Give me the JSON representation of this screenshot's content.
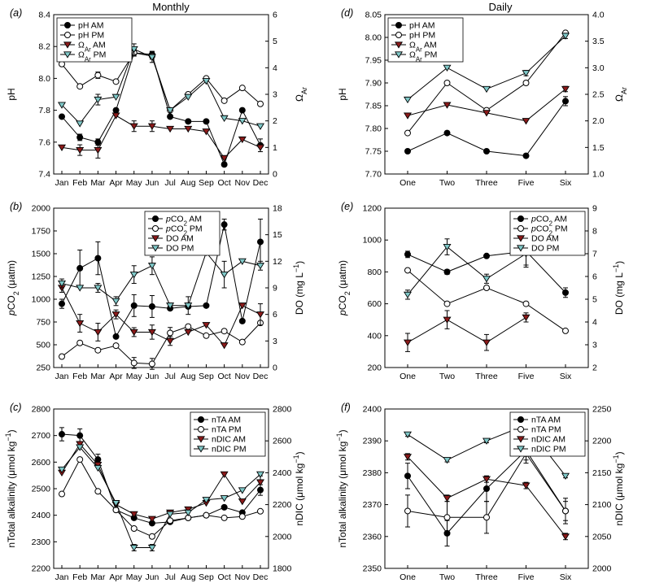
{
  "figure_titles": {
    "left": "Monthly",
    "right": "Daily"
  },
  "chart_data": [
    {
      "id": "a",
      "panel_label": "(a)",
      "type": "line",
      "categories": [
        "Jan",
        "Feb",
        "Mar",
        "Apr",
        "May",
        "Jun",
        "Jul",
        "Aug",
        "Sep",
        "Oct",
        "Nov",
        "Dec"
      ],
      "ylabel": "pH",
      "ylim": [
        7.4,
        8.4
      ],
      "yticks": [
        "7.4",
        "7.6",
        "7.8",
        "8.0",
        "8.2",
        "8.4"
      ],
      "y2label": "Ω Ar",
      "y2lim": [
        0,
        6
      ],
      "y2ticks": [
        "0",
        "1",
        "2",
        "3",
        "4",
        "5",
        "6"
      ],
      "legend": "top-left",
      "series": [
        {
          "name": "pH AM",
          "marker": "filled-circle",
          "axis": "left",
          "values": [
            7.76,
            7.63,
            7.6,
            7.8,
            8.16,
            8.15,
            7.76,
            7.73,
            7.73,
            7.46,
            7.8,
            7.58
          ],
          "err": [
            0,
            0.02,
            0.02,
            0,
            0.02,
            0.02,
            0,
            0,
            0,
            0,
            0,
            0.04
          ]
        },
        {
          "name": "pH PM",
          "marker": "open-circle",
          "axis": "left",
          "values": [
            8.09,
            7.95,
            8.02,
            7.98,
            8.16,
            8.14,
            7.8,
            7.9,
            8.0,
            7.86,
            7.94,
            7.84
          ],
          "err": [
            0,
            0,
            0.02,
            0,
            0.02,
            0.02,
            0,
            0,
            0,
            0,
            0,
            0
          ]
        },
        {
          "name": "Ω Ar AM",
          "marker": "filled-triangle-down",
          "axis": "right",
          "values": [
            1.0,
            0.9,
            0.9,
            2.2,
            1.8,
            1.8,
            1.7,
            1.7,
            1.6,
            0.6,
            1.3,
            1.0
          ],
          "err": [
            0,
            0.2,
            0.3,
            0,
            0.2,
            0.2,
            0,
            0,
            0,
            0,
            0,
            0
          ]
        },
        {
          "name": "Ω Ar PM",
          "marker": "open-triangle-down",
          "axis": "right",
          "values": [
            2.6,
            1.9,
            2.8,
            2.9,
            4.7,
            4.4,
            2.4,
            2.9,
            3.5,
            2.1,
            2.0,
            1.8
          ],
          "err": [
            0,
            0,
            0.2,
            0,
            0.2,
            0.2,
            0,
            0,
            0,
            0,
            0,
            0
          ]
        }
      ]
    },
    {
      "id": "b",
      "panel_label": "(b)",
      "type": "line",
      "categories": [
        "Jan",
        "Feb",
        "Mar",
        "Apr",
        "May",
        "Jun",
        "Jul",
        "Aug",
        "Sep",
        "Oct",
        "Nov",
        "Dec"
      ],
      "ylabel": "pCO2 (μatm)",
      "ylim": [
        250,
        2000
      ],
      "yticks": [
        "250",
        "500",
        "750",
        "1000",
        "1250",
        "1500",
        "1750",
        "2000"
      ],
      "y2label": "DO (mg L−1)",
      "y2lim": [
        0,
        18
      ],
      "y2ticks": [
        "0",
        "3",
        "6",
        "9",
        "12",
        "15",
        "18"
      ],
      "legend": "top-center",
      "series": [
        {
          "name": "pCO2 AM",
          "marker": "filled-circle",
          "axis": "left",
          "values": [
            950,
            1340,
            1450,
            590,
            930,
            920,
            900,
            920,
            930,
            1820,
            760,
            1630
          ],
          "err": [
            50,
            200,
            180,
            0,
            120,
            120,
            0,
            0,
            0,
            60,
            0,
            250
          ]
        },
        {
          "name": "pCO2 PM",
          "marker": "open-circle",
          "axis": "left",
          "values": [
            370,
            520,
            440,
            490,
            300,
            290,
            630,
            700,
            600,
            650,
            530,
            740
          ],
          "err": [
            0,
            0,
            0,
            0,
            60,
            60,
            60,
            0,
            0,
            0,
            0,
            0
          ]
        },
        {
          "name": "DO AM",
          "marker": "filled-triangle-down",
          "axis": "right",
          "values": [
            9.0,
            5.0,
            4.0,
            6.0,
            4.0,
            4.0,
            3.0,
            4.0,
            4.8,
            2.5,
            7.0,
            6.0
          ],
          "err": [
            0.5,
            1.0,
            1.0,
            0.5,
            0.5,
            0.8,
            0.5,
            0,
            0,
            0,
            0,
            1.2
          ]
        },
        {
          "name": "DO PM",
          "marker": "open-triangle-down",
          "axis": "right",
          "values": [
            9.5,
            9.0,
            9.0,
            7.5,
            10.5,
            11.5,
            7.0,
            7.0,
            13.0,
            10.5,
            12.0,
            11.5
          ],
          "err": [
            0.5,
            0,
            0.5,
            0.5,
            1.0,
            1.0,
            0,
            1.0,
            0,
            1.5,
            0,
            0.5
          ]
        }
      ]
    },
    {
      "id": "c",
      "panel_label": "(c)",
      "type": "line",
      "categories": [
        "Jan",
        "Feb",
        "Mar",
        "Apr",
        "May",
        "Jun",
        "Jul",
        "Aug",
        "Sep",
        "Oct",
        "Nov",
        "Dec"
      ],
      "ylabel": "nTotal alkalinity (μmol kg−1)",
      "ylim": [
        2200,
        2800
      ],
      "yticks": [
        "2200",
        "2300",
        "2400",
        "2500",
        "2600",
        "2700",
        "2800"
      ],
      "y2label": "nDIC (μmol kg−1)",
      "y2lim": [
        1800,
        2800
      ],
      "y2ticks": [
        "1800",
        "2000",
        "2200",
        "2400",
        "2600",
        "2800"
      ],
      "legend": "top-right",
      "series": [
        {
          "name": "nTA AM",
          "marker": "filled-circle",
          "axis": "left",
          "values": [
            2705,
            2700,
            2610,
            2420,
            2390,
            2370,
            2375,
            2390,
            2400,
            2430,
            2410,
            2495
          ],
          "err": [
            25,
            25,
            20,
            0,
            0,
            0,
            0,
            0,
            0,
            0,
            0,
            20
          ]
        },
        {
          "name": "nTA PM",
          "marker": "open-circle",
          "axis": "left",
          "values": [
            2480,
            2610,
            2490,
            2420,
            2350,
            2320,
            2380,
            2390,
            2400,
            2390,
            2395,
            2415
          ],
          "err": [
            0,
            0,
            0,
            0,
            0,
            0,
            0,
            0,
            0,
            0,
            0,
            0
          ]
        },
        {
          "name": "nDIC AM",
          "marker": "filled-triangle-down",
          "axis": "right",
          "values": [
            2400,
            2580,
            2450,
            2200,
            2140,
            2110,
            2150,
            2170,
            2210,
            2390,
            2220,
            2340
          ],
          "err": [
            0,
            0,
            0,
            0,
            0,
            0,
            0,
            0,
            0,
            0,
            0,
            40
          ]
        },
        {
          "name": "nDIC PM",
          "marker": "open-triangle-down",
          "axis": "right",
          "values": [
            2420,
            2560,
            2430,
            2210,
            1930,
            1930,
            2140,
            2150,
            2230,
            2240,
            2290,
            2390
          ],
          "err": [
            0,
            0,
            0,
            0,
            20,
            20,
            0,
            0,
            0,
            0,
            0,
            0
          ]
        }
      ]
    },
    {
      "id": "d",
      "panel_label": "(d)",
      "type": "line",
      "categories": [
        "One",
        "Two",
        "Three",
        "Five",
        "Six"
      ],
      "ylabel": "pH",
      "ylim": [
        7.7,
        8.05
      ],
      "yticks": [
        "7.70",
        "7.75",
        "7.80",
        "7.85",
        "7.90",
        "7.95",
        "8.00",
        "8.05"
      ],
      "y2label": "Ω Ar",
      "y2lim": [
        1.0,
        4.0
      ],
      "y2ticks": [
        "1.0",
        "1.5",
        "2.0",
        "2.5",
        "3.0",
        "3.5",
        "4.0"
      ],
      "legend": "top-left",
      "series": [
        {
          "name": "pH AM",
          "marker": "filled-circle",
          "axis": "left",
          "values": [
            7.75,
            7.79,
            7.75,
            7.74,
            7.86
          ],
          "err": [
            0.004,
            0.004,
            0,
            0.004,
            0.01
          ]
        },
        {
          "name": "pH PM",
          "marker": "open-circle",
          "axis": "left",
          "values": [
            7.79,
            7.9,
            7.84,
            7.9,
            8.01
          ],
          "err": [
            0,
            0,
            0.004,
            0.004,
            0.004
          ]
        },
        {
          "name": "Ω Ar AM",
          "marker": "filled-triangle-down",
          "axis": "right",
          "values": [
            2.1,
            2.3,
            2.15,
            2.0,
            2.6
          ],
          "err": [
            0,
            0,
            0,
            0,
            0.05
          ]
        },
        {
          "name": "Ω Ar PM",
          "marker": "open-triangle-down",
          "axis": "right",
          "values": [
            2.4,
            3.0,
            2.6,
            2.9,
            3.6
          ],
          "err": [
            0,
            0,
            0,
            0.05,
            0.05
          ]
        }
      ]
    },
    {
      "id": "e",
      "panel_label": "(e)",
      "type": "line",
      "categories": [
        "One",
        "Two",
        "Three",
        "Five",
        "Six"
      ],
      "ylabel": "pCO2 (μatm)",
      "ylim": [
        200,
        1200
      ],
      "yticks": [
        "200",
        "400",
        "600",
        "800",
        "1000",
        "1200"
      ],
      "y2label": "DO (mg L−1)",
      "y2lim": [
        2,
        9
      ],
      "y2ticks": [
        "2",
        "3",
        "4",
        "5",
        "6",
        "7",
        "8",
        "9"
      ],
      "legend": "top-right",
      "series": [
        {
          "name": "pCO2 AM",
          "marker": "filled-circle",
          "axis": "left",
          "values": [
            910,
            800,
            900,
            930,
            670
          ],
          "err": [
            20,
            15,
            0,
            100,
            30
          ]
        },
        {
          "name": "pCO2 PM",
          "marker": "open-circle",
          "axis": "left",
          "values": [
            810,
            600,
            700,
            600,
            430
          ],
          "err": [
            0,
            0,
            0,
            0,
            0
          ]
        },
        {
          "name": "DO AM",
          "marker": "filled-triangle-down",
          "axis": "right",
          "values": [
            3.1,
            4.1,
            3.1,
            4.2,
            null
          ],
          "err": [
            0.4,
            0.4,
            0.35,
            0.2,
            0
          ]
        },
        {
          "name": "DO PM",
          "marker": "open-triangle-down",
          "axis": "right",
          "values": [
            5.2,
            7.3,
            5.9,
            7.0,
            null
          ],
          "err": [
            0.2,
            0.35,
            0.2,
            0.5,
            0
          ]
        }
      ]
    },
    {
      "id": "f",
      "panel_label": "(f)",
      "type": "line",
      "categories": [
        "One",
        "Two",
        "Three",
        "Five",
        "Six"
      ],
      "ylabel": "nTotal alkalinity (μmol kg−1)",
      "ylim": [
        2350,
        2400
      ],
      "yticks": [
        "2350",
        "2360",
        "2370",
        "2380",
        "2390",
        "2400"
      ],
      "y2label": "nDIC (μmol kg−1)",
      "y2lim": [
        2000,
        2250
      ],
      "y2ticks": [
        "2000",
        "2050",
        "2100",
        "2150",
        "2200",
        "2250"
      ],
      "legend": "top-right",
      "series": [
        {
          "name": "nTA AM",
          "marker": "filled-circle",
          "axis": "left",
          "values": [
            2379,
            2361,
            2375,
            2387,
            2368
          ],
          "err": [
            4,
            4,
            4,
            4,
            4
          ]
        },
        {
          "name": "nTA PM",
          "marker": "open-circle",
          "axis": "left",
          "values": [
            2368,
            2366,
            2366,
            2386,
            2368
          ],
          "err": [
            5,
            5,
            5,
            2,
            3
          ]
        },
        {
          "name": "nDIC AM",
          "marker": "filled-triangle-down",
          "axis": "right",
          "values": [
            2175,
            2110,
            2140,
            2130,
            2050
          ],
          "err": [
            5,
            5,
            5,
            5,
            5
          ]
        },
        {
          "name": "nDIC PM",
          "marker": "open-triangle-down",
          "axis": "right",
          "values": [
            2210,
            2170,
            2200,
            2225,
            2145
          ],
          "err": [
            3,
            3,
            3,
            5,
            3
          ]
        }
      ]
    }
  ]
}
